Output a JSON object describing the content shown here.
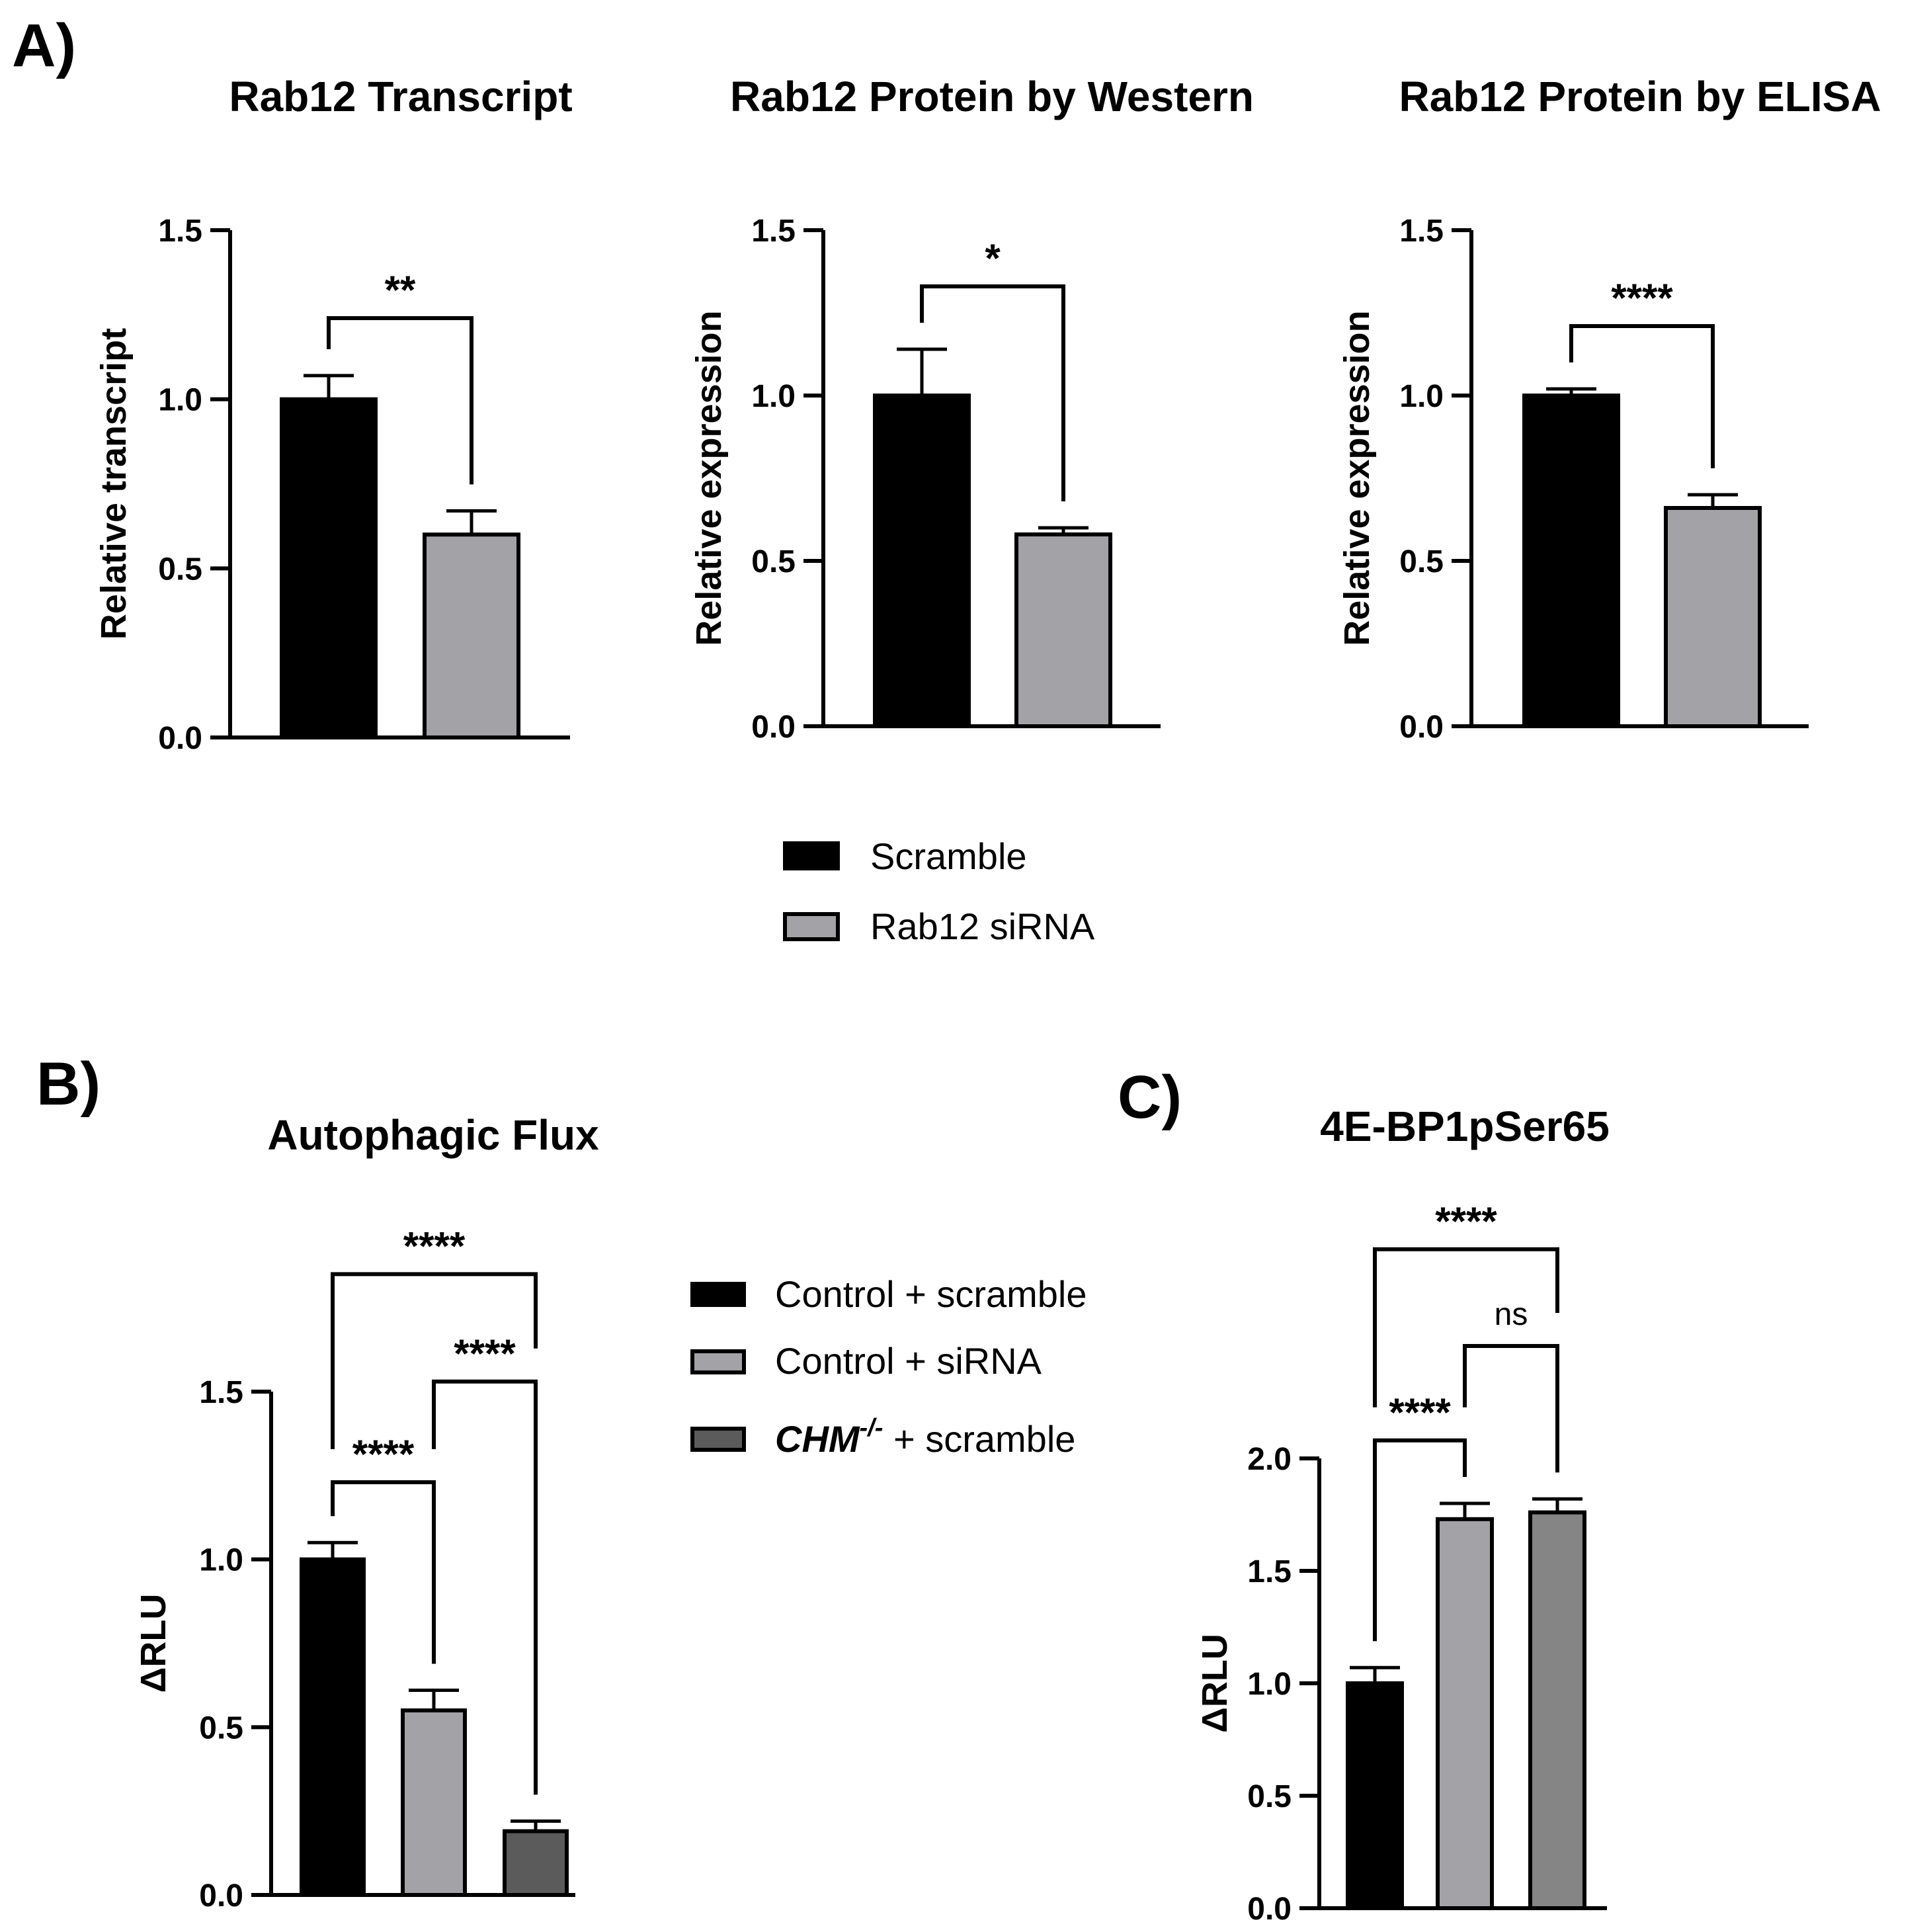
{
  "panels": {
    "A": "A)",
    "B": "B)",
    "C": "C)"
  },
  "colors": {
    "black": "#000000",
    "light_gray": "#a3a3a7",
    "dark_gray": "#5b5b5b",
    "mid_gray": "#858585"
  },
  "legend_a": {
    "items": [
      {
        "label": "Scramble",
        "color": "#000000"
      },
      {
        "label": "Rab12 siRNA",
        "color": "#a3a3a7"
      }
    ]
  },
  "legend_b": {
    "items": [
      {
        "label": "Control + scramble",
        "color": "#000000"
      },
      {
        "label": "Control + siRNA",
        "color": "#a3a3a7"
      },
      {
        "label_italic": "CHM",
        "label_sup": "-/-",
        "label_rest": " + scramble",
        "color": "#5b5b5b"
      }
    ]
  },
  "chart_data": [
    {
      "id": "transcript",
      "type": "bar",
      "title": "Rab12 Transcript",
      "xlabel": "",
      "ylabel": "Relative transcript",
      "ylim": [
        0,
        1.5
      ],
      "yticks": [
        0.0,
        0.5,
        1.0,
        1.5
      ],
      "ytick_labels": [
        "0.0",
        "0.5",
        "1.0",
        "1.5"
      ],
      "categories": [
        "Scramble",
        "Rab12 siRNA"
      ],
      "values": [
        1.0,
        0.6
      ],
      "errors": [
        0.07,
        0.07
      ],
      "colors": [
        "#000000",
        "#a3a3a7"
      ],
      "comparisons": [
        {
          "from": 0,
          "to": 1,
          "label": "**",
          "y": 1.24
        }
      ]
    },
    {
      "id": "western",
      "type": "bar",
      "title": "Rab12 Protein by Western",
      "xlabel": "",
      "ylabel": "Relative expression",
      "ylim": [
        0,
        1.5
      ],
      "yticks": [
        0.0,
        0.5,
        1.0,
        1.5
      ],
      "ytick_labels": [
        "0.0",
        "0.5",
        "1.0",
        "1.5"
      ],
      "categories": [
        "Scramble",
        "Rab12 siRNA"
      ],
      "values": [
        1.0,
        0.58
      ],
      "errors": [
        0.14,
        0.02
      ],
      "colors": [
        "#000000",
        "#a3a3a7"
      ],
      "comparisons": [
        {
          "from": 0,
          "to": 1,
          "label": "*",
          "y": 1.33
        }
      ]
    },
    {
      "id": "elisa",
      "type": "bar",
      "title": "Rab12 Protein by ELISA",
      "xlabel": "",
      "ylabel": "Relative expression",
      "ylim": [
        0,
        1.5
      ],
      "yticks": [
        0.0,
        0.5,
        1.0,
        1.5
      ],
      "ytick_labels": [
        "0.0",
        "0.5",
        "1.0",
        "1.5"
      ],
      "categories": [
        "Scramble",
        "Rab12 siRNA"
      ],
      "values": [
        1.0,
        0.66
      ],
      "errors": [
        0.02,
        0.04
      ],
      "colors": [
        "#000000",
        "#a3a3a7"
      ],
      "comparisons": [
        {
          "from": 0,
          "to": 1,
          "label": "****",
          "y": 1.21
        }
      ]
    },
    {
      "id": "flux",
      "type": "bar",
      "title": "Autophagic Flux",
      "xlabel": "",
      "ylabel": "ΔRLU",
      "ylim": [
        0,
        1.5
      ],
      "yticks": [
        0.0,
        0.5,
        1.0,
        1.5
      ],
      "ytick_labels": [
        "0.0",
        "0.5",
        "1.0",
        "1.5"
      ],
      "categories": [
        "Control + scramble",
        "Control + siRNA",
        "CHM-/- + scramble"
      ],
      "values": [
        1.0,
        0.55,
        0.19
      ],
      "errors": [
        0.05,
        0.06,
        0.03
      ],
      "colors": [
        "#000000",
        "#a3a3a7",
        "#5b5b5b"
      ],
      "comparisons": [
        {
          "from": 0,
          "to": 1,
          "label": "****",
          "y": 1.23
        },
        {
          "from": 1,
          "to": 2,
          "label": "****",
          "y": 1.53
        },
        {
          "from": 0,
          "to": 2,
          "label": "****",
          "y": 1.85
        }
      ]
    },
    {
      "id": "ebp1",
      "type": "bar",
      "title": "4E-BP1pSer65",
      "xlabel": "",
      "ylabel": "ΔRLU",
      "ylim": [
        0,
        2.0
      ],
      "yticks": [
        0.0,
        0.5,
        1.0,
        1.5,
        2.0
      ],
      "ytick_labels": [
        "0.0",
        "0.5",
        "1.0",
        "1.5",
        "2.0"
      ],
      "categories": [
        "Control + scramble",
        "Control + siRNA",
        "CHM-/- + scramble"
      ],
      "values": [
        1.0,
        1.73,
        1.76
      ],
      "errors": [
        0.07,
        0.07,
        0.06
      ],
      "colors": [
        "#000000",
        "#a3a3a7",
        "#858585"
      ],
      "comparisons": [
        {
          "from": 0,
          "to": 1,
          "label": "****",
          "y": 2.08
        },
        {
          "from": 1,
          "to": 2,
          "label": "ns",
          "y": 2.5
        },
        {
          "from": 0,
          "to": 2,
          "label": "****",
          "y": 2.93
        }
      ]
    }
  ]
}
